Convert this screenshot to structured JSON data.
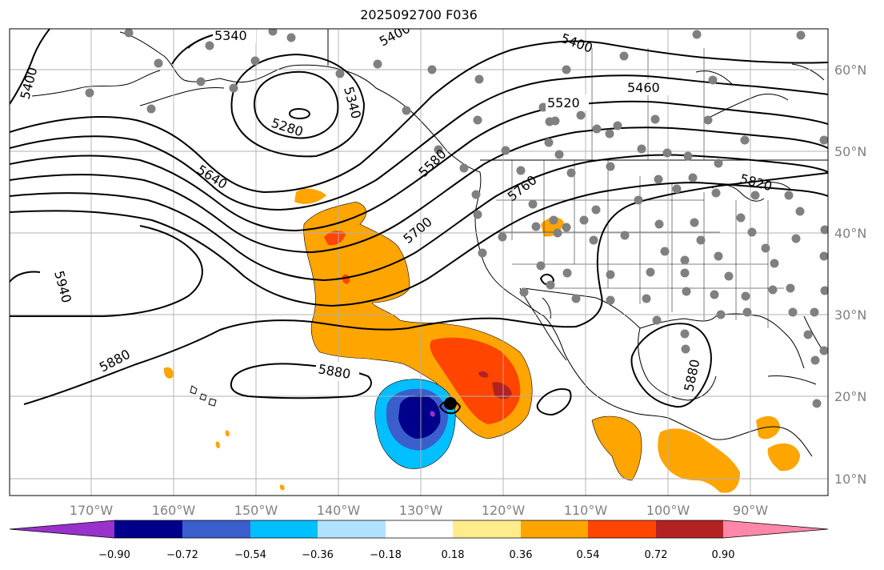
{
  "title": "2025092700 F036",
  "lat_labels": [
    "60°N",
    "50°N",
    "40°N",
    "30°N",
    "20°N",
    "10°N"
  ],
  "lon_labels": [
    "170°W",
    "160°W",
    "150°W",
    "140°W",
    "130°W",
    "120°W",
    "110°W",
    "100°W",
    "90°W"
  ],
  "contour_labels": [
    "5340",
    "5400",
    "5400",
    "5400",
    "5280",
    "5340",
    "5460",
    "5520",
    "5580",
    "5640",
    "5760",
    "5820",
    "5700",
    "5940",
    "5880",
    "5880",
    "5880"
  ],
  "colorbar": {
    "ticks": [
      "−0.90",
      "−0.72",
      "−0.54",
      "−0.36",
      "−0.18",
      "0.18",
      "0.36",
      "0.54",
      "0.72",
      "0.90"
    ],
    "colors": [
      "#9932cc",
      "#00008b",
      "#3a5fcd",
      "#00bfff",
      "#b0e2ff",
      "#ffffff",
      "#ffec8b",
      "#ffa500",
      "#ff4500",
      "#b22222",
      "#ff88aa"
    ]
  },
  "colors": {
    "low_neg": "#00008b",
    "mid_neg": "#3a5fcd",
    "light_neg": "#00bfff",
    "pale_neg": "#b0e2ff",
    "orange": "#ffa500",
    "red_orange": "#ff4500",
    "dark_red": "#b22222",
    "stations": "#808080"
  }
}
